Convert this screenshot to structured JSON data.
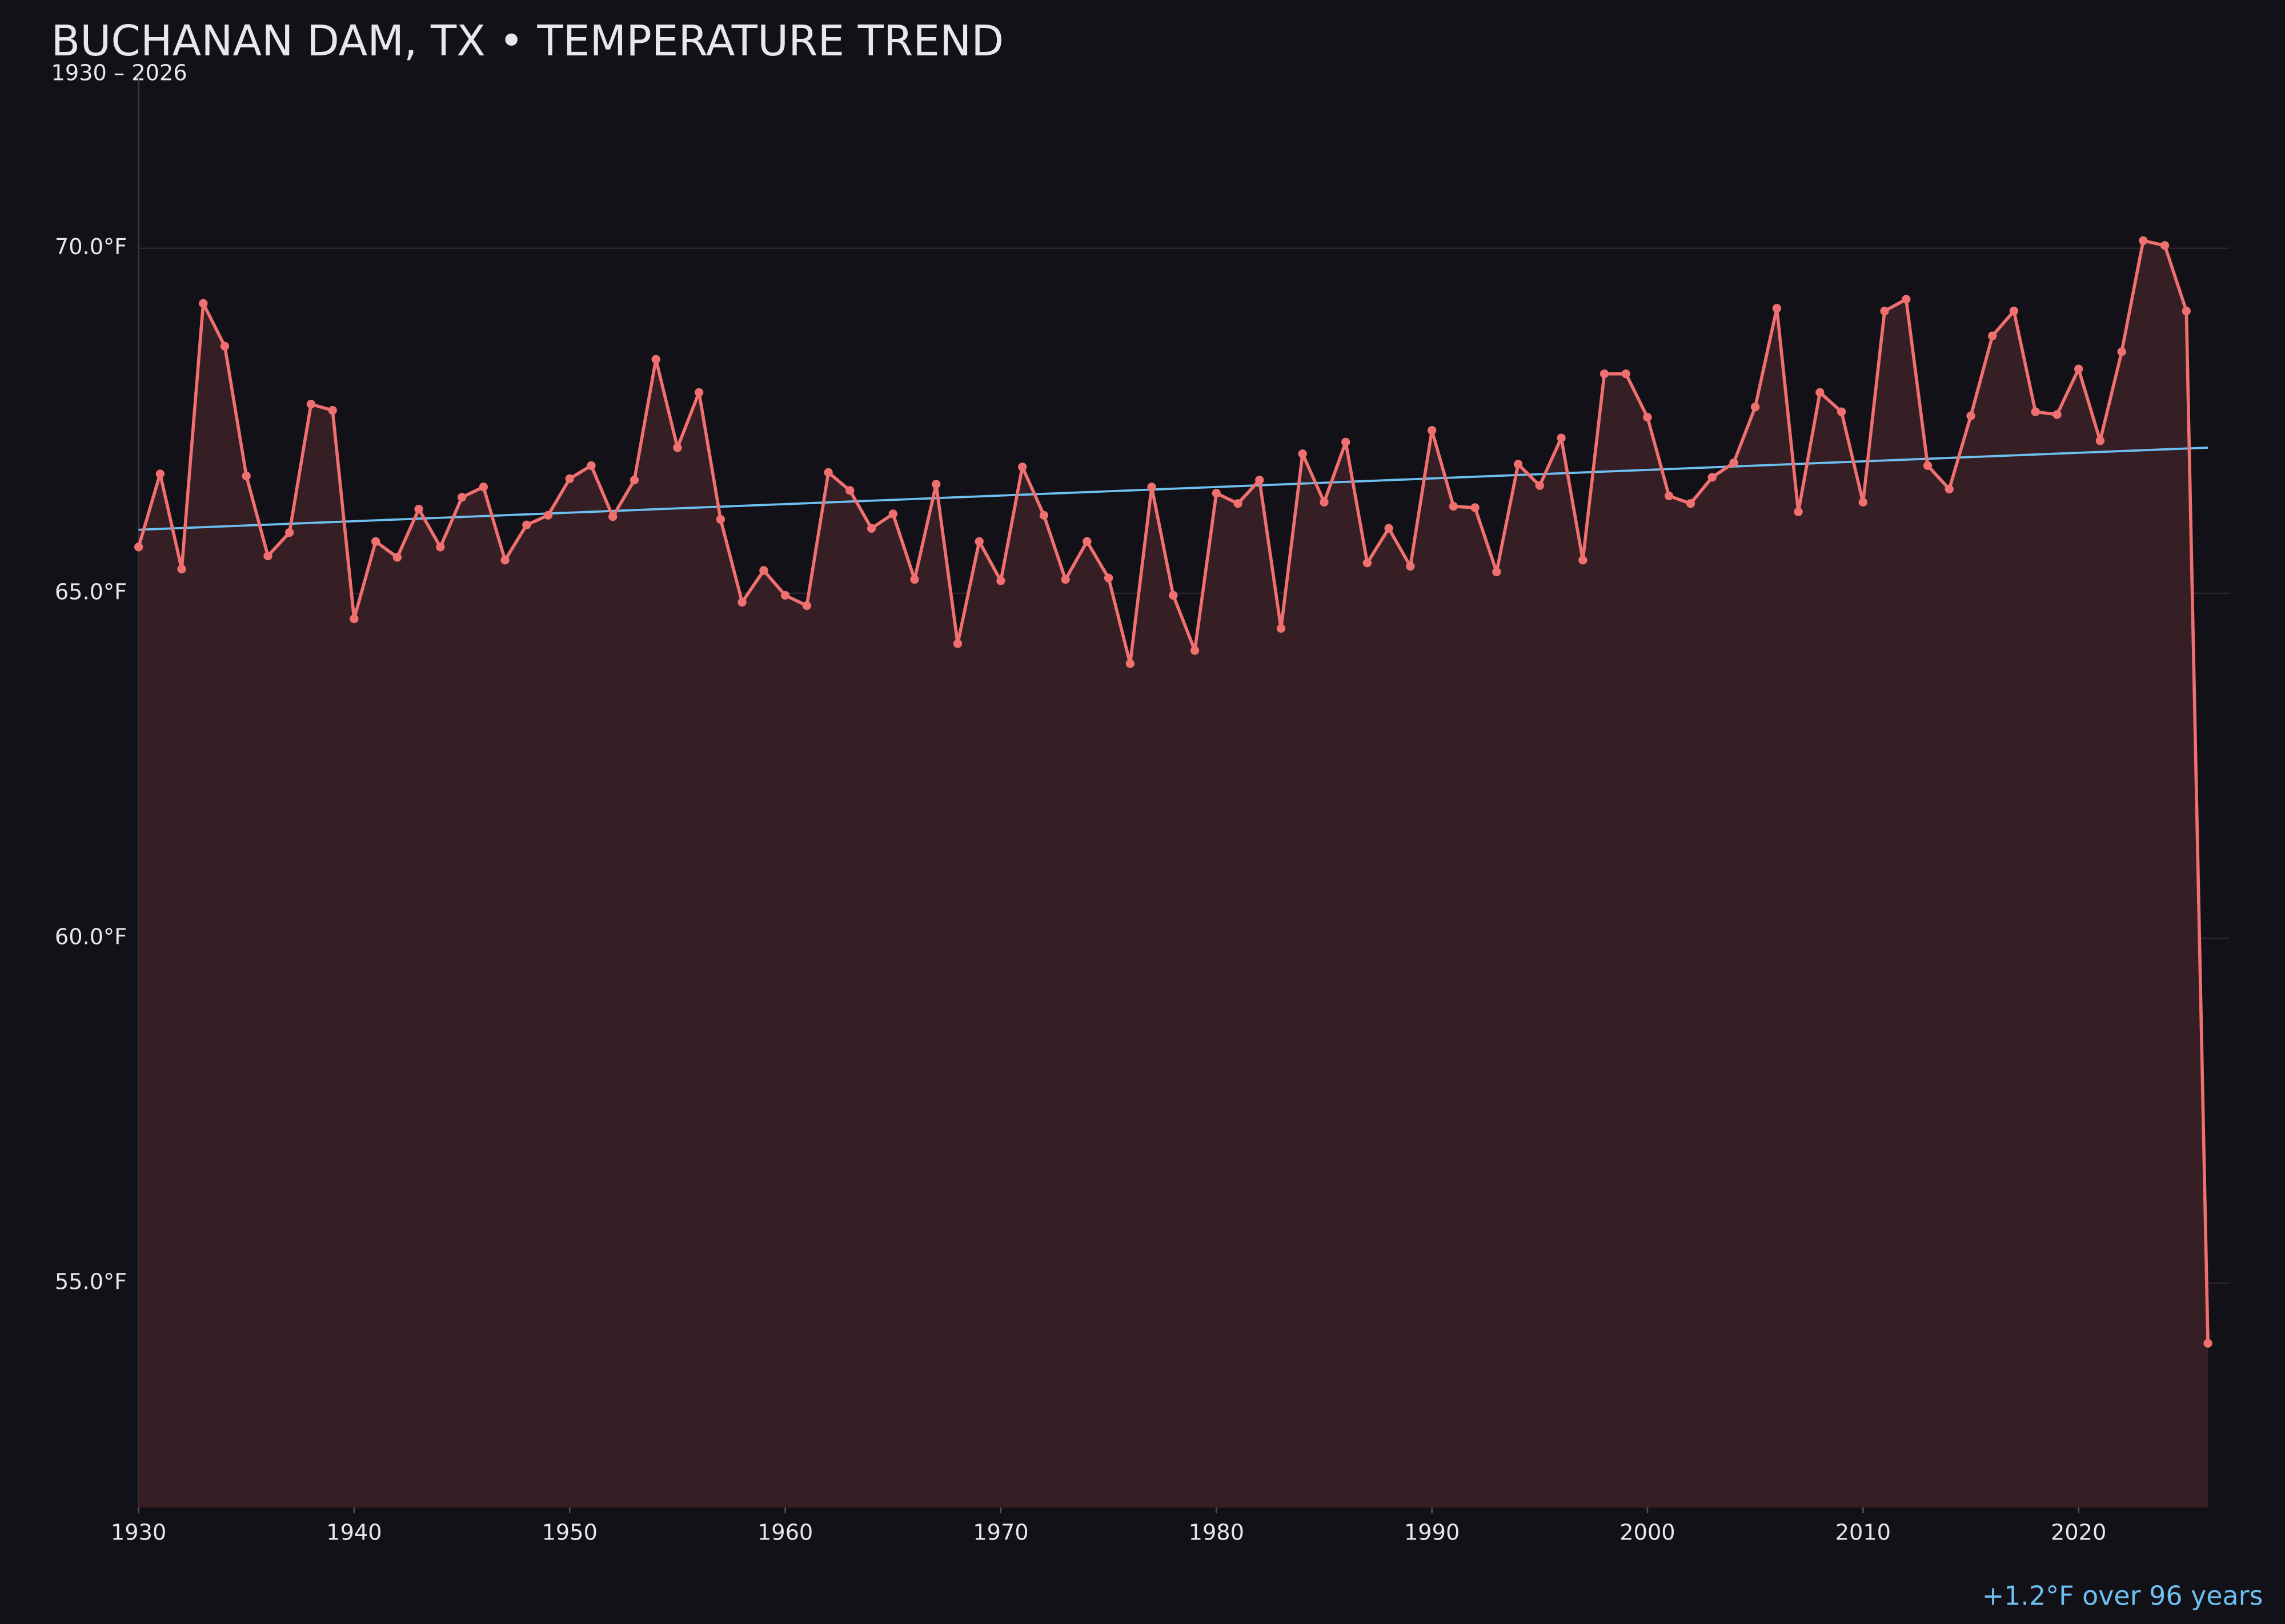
{
  "chart_data": {
    "type": "line",
    "title": "BUCHANAN DAM, TX • TEMPERATURE TREND",
    "subtitle": "1930 – 2026",
    "annotation": "+1.2°F over 96 years",
    "x": [
      1930,
      1931,
      1932,
      1933,
      1934,
      1935,
      1936,
      1937,
      1938,
      1939,
      1940,
      1941,
      1942,
      1943,
      1944,
      1945,
      1946,
      1947,
      1948,
      1949,
      1950,
      1951,
      1952,
      1953,
      1954,
      1955,
      1956,
      1957,
      1958,
      1959,
      1960,
      1961,
      1962,
      1963,
      1964,
      1965,
      1966,
      1967,
      1968,
      1969,
      1970,
      1971,
      1972,
      1973,
      1974,
      1975,
      1976,
      1977,
      1978,
      1979,
      1980,
      1981,
      1982,
      1983,
      1984,
      1985,
      1986,
      1987,
      1988,
      1989,
      1990,
      1991,
      1992,
      1993,
      1994,
      1995,
      1996,
      1997,
      1998,
      1999,
      2000,
      2001,
      2002,
      2003,
      2004,
      2005,
      2006,
      2007,
      2008,
      2009,
      2010,
      2011,
      2012,
      2013,
      2014,
      2015,
      2016,
      2017,
      2018,
      2019,
      2020,
      2021,
      2022,
      2023,
      2024,
      2025,
      2026
    ],
    "values": [
      65.67,
      66.73,
      65.35,
      69.2,
      68.58,
      66.7,
      65.54,
      65.88,
      67.74,
      67.65,
      64.63,
      65.75,
      65.52,
      66.22,
      65.67,
      66.39,
      66.54,
      65.48,
      65.99,
      66.13,
      66.66,
      66.85,
      66.11,
      66.64,
      68.39,
      67.11,
      67.91,
      66.07,
      64.87,
      65.33,
      64.97,
      64.82,
      66.75,
      66.49,
      65.94,
      66.15,
      65.2,
      66.58,
      64.27,
      65.75,
      65.18,
      66.83,
      66.13,
      65.2,
      65.75,
      65.22,
      63.98,
      66.54,
      64.97,
      64.17,
      66.45,
      66.3,
      66.64,
      64.49,
      67.02,
      66.32,
      67.19,
      65.44,
      65.94,
      65.39,
      67.36,
      66.26,
      66.24,
      65.31,
      66.87,
      66.56,
      67.25,
      65.48,
      68.18,
      68.18,
      67.55,
      66.41,
      66.3,
      66.68,
      66.89,
      67.7,
      69.13,
      66.18,
      67.91,
      67.63,
      66.32,
      69.09,
      69.26,
      66.85,
      66.51,
      67.57,
      68.73,
      69.09,
      67.63,
      67.59,
      68.25,
      67.21,
      68.5,
      70.11,
      70.04,
      69.09,
      54.13
    ],
    "color": "#f07070",
    "fill_color": "#351f25",
    "trend": {
      "x": [
        1930,
        2026
      ],
      "values": [
        65.92,
        67.11
      ],
      "color": "#6ec0f0"
    },
    "xlim": [
      1930,
      2027
    ],
    "ylim": [
      51.75,
      72.5
    ],
    "xticks": [
      1930,
      1940,
      1950,
      1960,
      1970,
      1980,
      1990,
      2000,
      2010,
      2020
    ],
    "yticks": [
      {
        "value": 55,
        "label": "55.0°F"
      },
      {
        "value": 60,
        "label": "60.0°F"
      },
      {
        "value": 65,
        "label": "65.0°F"
      },
      {
        "value": 70,
        "label": "70.0°F"
      }
    ],
    "grid": true
  }
}
